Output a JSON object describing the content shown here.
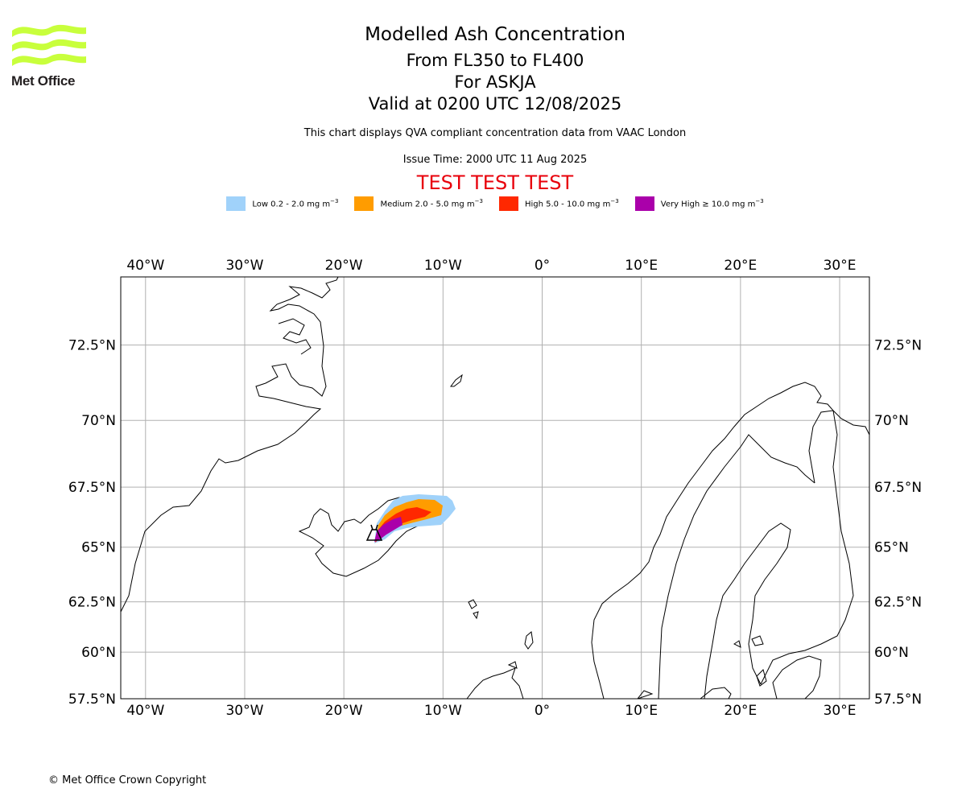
{
  "header": {
    "title": "Modelled Ash Concentration",
    "level_range": "From FL350 to FL400",
    "volcano": "For ASKJA",
    "valid_time": "Valid at 0200 UTC 12/08/2025",
    "note": "This chart displays QVA compliant concentration data from VAAC London",
    "issue_time": "Issue Time: 2000 UTC 11 Aug 2025",
    "test_banner": "TEST TEST TEST"
  },
  "logo": {
    "text": "Met Office",
    "color": "#c8ff3c"
  },
  "legend": [
    {
      "label": "Low 0.2 - 2.0 mg m",
      "exp": "−3",
      "color": "#a0d2fa"
    },
    {
      "label": "Medium 2.0 - 5.0 mg m",
      "exp": "−3",
      "color": "#ff9c00"
    },
    {
      "label": "High 5.0 - 10.0 mg m",
      "exp": "−3",
      "color": "#ff2800"
    },
    {
      "label": "Very High  ≥  10.0 mg m",
      "exp": "−3",
      "color": "#aa00aa"
    }
  ],
  "map": {
    "lon_range": [
      -42.5,
      33
    ],
    "lat_range": [
      57.5,
      74.5
    ],
    "lon_ticks": [
      {
        "lon": -40,
        "label": "40°W"
      },
      {
        "lon": -30,
        "label": "30°W"
      },
      {
        "lon": -20,
        "label": "20°W"
      },
      {
        "lon": -10,
        "label": "10°W"
      },
      {
        "lon": 0,
        "label": "0°"
      },
      {
        "lon": 10,
        "label": "10°E"
      },
      {
        "lon": 20,
        "label": "20°E"
      },
      {
        "lon": 30,
        "label": "30°E"
      }
    ],
    "lat_ticks": [
      {
        "lat": 72.5,
        "label": "72.5°N"
      },
      {
        "lat": 70,
        "label": "70°N"
      },
      {
        "lat": 67.5,
        "label": "67.5°N"
      },
      {
        "lat": 65,
        "label": "65°N"
      },
      {
        "lat": 62.5,
        "label": "62.5°N"
      },
      {
        "lat": 60,
        "label": "60°N"
      },
      {
        "lat": 57.5,
        "label": "57.5°N"
      }
    ],
    "gridline_color": "#b0b0b0",
    "volcano_location": {
      "lon": -16.75,
      "lat": 65.03
    }
  },
  "footer": {
    "copyright": "© Met Office Crown Copyright"
  }
}
